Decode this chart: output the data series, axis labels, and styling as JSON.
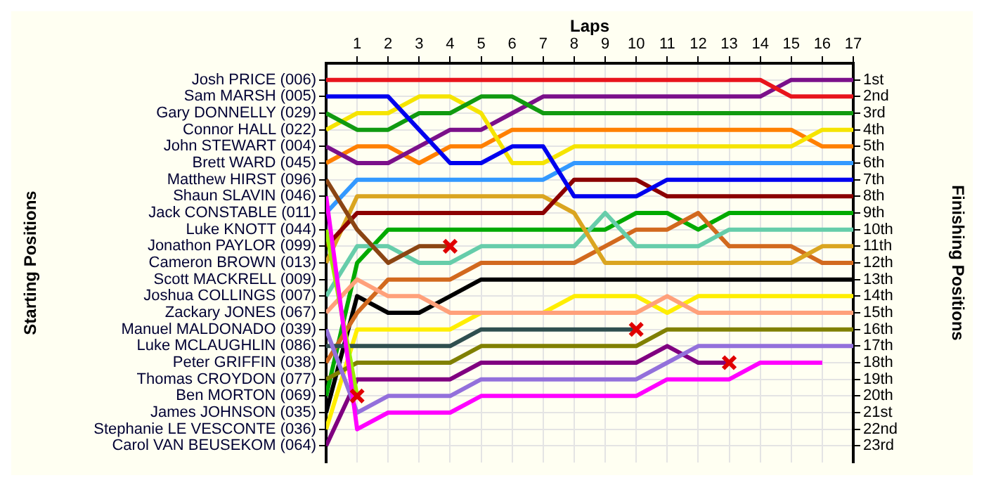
{
  "chart_data": {
    "type": "line",
    "xlabel": "Laps",
    "y2label": "Finishing Positions",
    "annotations": [
      "Starting Positions"
    ],
    "x": [
      0,
      1,
      2,
      3,
      4,
      5,
      6,
      7,
      8,
      9,
      10,
      11,
      12,
      13,
      14,
      15,
      16,
      17
    ],
    "xlim": [
      0,
      17
    ],
    "xticks": [
      1,
      2,
      3,
      4,
      5,
      6,
      7,
      8,
      9,
      10,
      11,
      12,
      13,
      14,
      15,
      16,
      17
    ],
    "y_categories": [
      "Josh PRICE (006)",
      "Sam MARSH (005)",
      "Gary DONNELLY (029)",
      "Connor HALL (022)",
      "John STEWART (004)",
      "Brett WARD (045)",
      "Matthew HIRST (096)",
      "Shaun SLAVIN (046)",
      "Jack CONSTABLE (011)",
      "Luke KNOTT (044)",
      "Jonathon PAYLOR (099)",
      "Cameron BROWN (013)",
      "Scott MACKRELL (009)",
      "Joshua COLLINGS (007)",
      "Zackary JONES (067)",
      "Manuel MALDONADO (039)",
      "Luke MCLAUGHLIN (086)",
      "Peter GRIFFIN (038)",
      "Thomas CROYDON (077)",
      "Ben MORTON (069)",
      "James JOHNSON (035)",
      "Stephanie LE VESCONTE (036)",
      "Carol VAN BEUSEKOM (064)"
    ],
    "y2lim": [
      24,
      0
    ],
    "y2ticks": [
      {
        "value": 1,
        "label": "1st"
      },
      {
        "value": 2,
        "label": "2nd"
      },
      {
        "value": 3,
        "label": "3rd"
      },
      {
        "value": 4,
        "label": "4th"
      },
      {
        "value": 5,
        "label": "5th"
      },
      {
        "value": 6,
        "label": "6th"
      },
      {
        "value": 7,
        "label": "7th"
      },
      {
        "value": 8,
        "label": "8th"
      },
      {
        "value": 9,
        "label": "9th"
      },
      {
        "value": 10,
        "label": "10th"
      },
      {
        "value": 11,
        "label": "11th"
      },
      {
        "value": 12,
        "label": "12th"
      },
      {
        "value": 13,
        "label": "13th"
      },
      {
        "value": 14,
        "label": "14th"
      },
      {
        "value": 15,
        "label": "15th"
      },
      {
        "value": 16,
        "label": "16th"
      },
      {
        "value": 17,
        "label": "17th"
      },
      {
        "value": 18,
        "label": "18th"
      },
      {
        "value": 19,
        "label": "19th"
      },
      {
        "value": 20,
        "label": "20th"
      },
      {
        "value": 21,
        "label": "21st"
      },
      {
        "value": 22,
        "label": "22nd"
      },
      {
        "value": 23,
        "label": "23rd"
      }
    ],
    "grid": true,
    "series": [
      {
        "axis": "y2",
        "color": "#e8141c",
        "values": [
          1,
          1,
          1,
          1,
          1,
          1,
          1,
          1,
          1,
          1,
          1,
          1,
          1,
          1,
          1,
          2,
          2,
          2
        ]
      },
      {
        "axis": "y2",
        "color": "#0000ee",
        "values": [
          2,
          2,
          2,
          4,
          6,
          6,
          5,
          5,
          8,
          8,
          8,
          7,
          7,
          7,
          7,
          7,
          7,
          7
        ]
      },
      {
        "axis": "y2",
        "color": "#109a10",
        "values": [
          3,
          4,
          4,
          3,
          3,
          2,
          2,
          3,
          3,
          3,
          3,
          3,
          3,
          3,
          3,
          3,
          3,
          3
        ]
      },
      {
        "axis": "y2",
        "color": "#f5e400",
        "values": [
          4,
          3,
          3,
          2,
          2,
          3,
          6,
          6,
          5,
          5,
          5,
          5,
          5,
          5,
          5,
          5,
          4,
          4
        ]
      },
      {
        "axis": "y2",
        "color": "#7b108a",
        "values": [
          5,
          6,
          6,
          5,
          4,
          4,
          3,
          2,
          2,
          2,
          2,
          2,
          2,
          2,
          2,
          1,
          1,
          1
        ]
      },
      {
        "axis": "y2",
        "color": "#ff8000",
        "values": [
          6,
          5,
          5,
          6,
          5,
          5,
          4,
          4,
          4,
          4,
          4,
          4,
          4,
          4,
          4,
          4,
          5,
          5
        ]
      },
      {
        "axis": "y2",
        "color": "#8b4513",
        "values": [
          7,
          10,
          12,
          11,
          11,
          null,
          null,
          null,
          null,
          null,
          null,
          null,
          null,
          null,
          null,
          null,
          null,
          null
        ]
      },
      {
        "axis": "y2",
        "color": "#ff00ff",
        "values": [
          8,
          22,
          21,
          21,
          21,
          20,
          20,
          20,
          20,
          20,
          20,
          19,
          19,
          19,
          18,
          18,
          18,
          null
        ]
      },
      {
        "axis": "y2",
        "color": "#3399ff",
        "values": [
          9,
          7,
          7,
          7,
          7,
          7,
          7,
          7,
          6,
          6,
          6,
          6,
          6,
          6,
          6,
          6,
          6,
          6
        ]
      },
      {
        "axis": "y2",
        "color": "#99ee00",
        "values": [
          10,
          20,
          null,
          null,
          null,
          null,
          null,
          null,
          null,
          null,
          null,
          null,
          null,
          null,
          null,
          null,
          null,
          null
        ]
      },
      {
        "axis": "y2",
        "color": "#8b0000",
        "values": [
          11,
          9,
          9,
          9,
          9,
          9,
          9,
          9,
          7,
          7,
          7,
          8,
          8,
          8,
          8,
          8,
          8,
          8
        ]
      },
      {
        "axis": "y2",
        "color": "#daa520",
        "values": [
          12,
          8,
          8,
          8,
          8,
          8,
          8,
          8,
          9,
          12,
          12,
          12,
          12,
          12,
          12,
          12,
          11,
          11
        ]
      },
      {
        "axis": "y2",
        "color": "#66cdaa",
        "values": [
          14,
          11,
          11,
          12,
          12,
          11,
          11,
          11,
          11,
          9,
          11,
          11,
          11,
          10,
          10,
          10,
          10,
          10
        ]
      },
      {
        "axis": "y2",
        "color": "#ffa07a",
        "values": [
          15,
          13,
          14,
          14,
          15,
          15,
          15,
          15,
          15,
          15,
          15,
          14,
          15,
          15,
          15,
          15,
          15,
          15
        ]
      },
      {
        "axis": "y2",
        "color": "#9370db",
        "values": [
          16,
          21,
          20,
          20,
          20,
          19,
          19,
          19,
          19,
          19,
          19,
          18,
          17,
          17,
          17,
          17,
          17,
          17
        ]
      },
      {
        "axis": "y2",
        "color": "#2f4f4f",
        "values": [
          17,
          17,
          17,
          17,
          17,
          16,
          16,
          16,
          16,
          16,
          16,
          null,
          null,
          null,
          null,
          null,
          null,
          null
        ]
      },
      {
        "axis": "y2",
        "color": "#d2691e",
        "values": [
          18,
          15,
          13,
          13,
          13,
          12,
          12,
          12,
          12,
          11,
          10,
          10,
          9,
          11,
          11,
          11,
          12,
          12
        ]
      },
      {
        "axis": "y2",
        "color": "#808000",
        "values": [
          19,
          18,
          18,
          18,
          18,
          17,
          17,
          17,
          17,
          17,
          17,
          16,
          16,
          16,
          16,
          16,
          16,
          16
        ]
      },
      {
        "axis": "y2",
        "color": "#00aa00",
        "values": [
          20,
          12,
          10,
          10,
          10,
          10,
          10,
          10,
          10,
          10,
          9,
          9,
          10,
          9,
          9,
          9,
          9,
          9
        ]
      },
      {
        "axis": "y2",
        "color": "#000000",
        "values": [
          21,
          14,
          15,
          15,
          14,
          13,
          13,
          13,
          13,
          13,
          13,
          13,
          13,
          13,
          13,
          13,
          13,
          13
        ]
      },
      {
        "axis": "y2",
        "color": "#ffee00",
        "values": [
          22,
          16,
          16,
          16,
          16,
          15,
          null,
          15,
          14,
          14,
          14,
          15,
          14,
          14,
          14,
          14,
          14,
          14
        ]
      },
      {
        "axis": "y2",
        "color": "#800080",
        "values": [
          23,
          19,
          19,
          19,
          19,
          18,
          18,
          18,
          18,
          18,
          18,
          17,
          18,
          18,
          null,
          null,
          null,
          null
        ]
      },
      {
        "axis": "y2",
        "type": "scatter",
        "color": "#e00000",
        "marker": "cross",
        "x": [
          1,
          4,
          10,
          13
        ],
        "values": [
          20,
          11,
          16,
          18
        ]
      }
    ]
  }
}
